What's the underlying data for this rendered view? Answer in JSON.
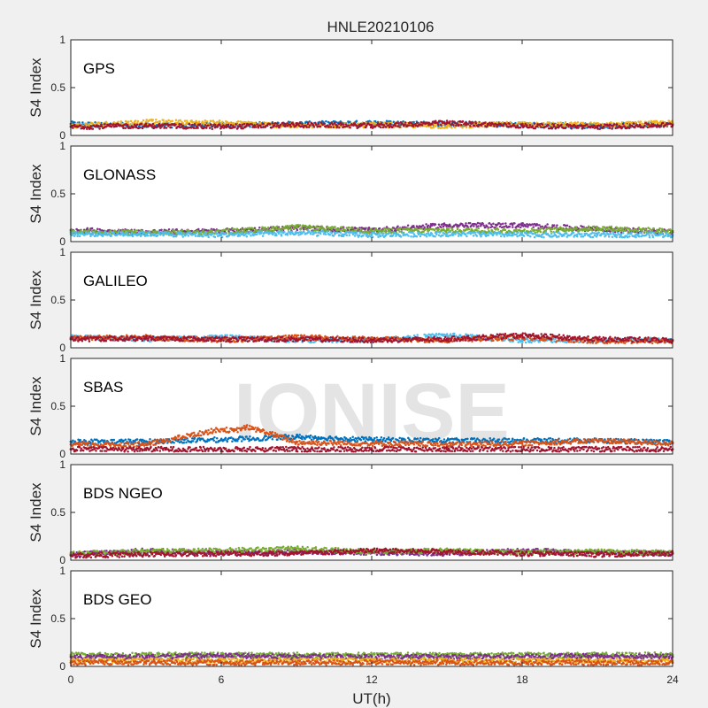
{
  "chart_data": {
    "type": "scatter",
    "title": "HNLE20210106",
    "xlabel": "UT(h)",
    "ylabel": "S4 Index",
    "xlim": [
      0,
      24
    ],
    "ylim": [
      0,
      1
    ],
    "xticks": [
      0,
      6,
      12,
      18,
      24
    ],
    "xtick_labels": [
      "0",
      "6",
      "12",
      "18",
      "24"
    ],
    "yticks": [
      0,
      0.5,
      1
    ],
    "ytick_labels": [
      "0",
      "0.5",
      "1"
    ],
    "grid": false,
    "watermark": "IONISE",
    "series_colors": [
      "#0072bd",
      "#d95319",
      "#edb120",
      "#7e2f8e",
      "#77ac30",
      "#4dbeee",
      "#a2142f"
    ],
    "panels": [
      {
        "label": "GPS",
        "series": [
          {
            "color": "#0072bd",
            "x": [
              0,
              3,
              6,
              9,
              12,
              15,
              18,
              21,
              24
            ],
            "y": [
              0.12,
              0.1,
              0.11,
              0.12,
              0.13,
              0.12,
              0.11,
              0.1,
              0.12
            ]
          },
          {
            "color": "#edb120",
            "x": [
              0,
              3,
              6,
              9,
              12,
              15,
              18,
              21,
              24
            ],
            "y": [
              0.1,
              0.14,
              0.13,
              0.1,
              0.11,
              0.1,
              0.12,
              0.11,
              0.13
            ]
          },
          {
            "color": "#a2142f",
            "x": [
              0,
              3,
              6,
              9,
              12,
              15,
              18,
              21,
              24
            ],
            "y": [
              0.09,
              0.1,
              0.09,
              0.11,
              0.1,
              0.13,
              0.1,
              0.09,
              0.11
            ]
          }
        ]
      },
      {
        "label": "GLONASS",
        "series": [
          {
            "color": "#7e2f8e",
            "x": [
              0,
              3,
              6,
              9,
              12,
              15,
              18,
              21,
              24
            ],
            "y": [
              0.12,
              0.1,
              0.11,
              0.14,
              0.12,
              0.17,
              0.17,
              0.13,
              0.1
            ]
          },
          {
            "color": "#77ac30",
            "x": [
              0,
              3,
              6,
              9,
              12,
              15,
              18,
              21,
              24
            ],
            "y": [
              0.1,
              0.09,
              0.1,
              0.15,
              0.11,
              0.12,
              0.11,
              0.14,
              0.11
            ]
          },
          {
            "color": "#4dbeee",
            "x": [
              0,
              3,
              6,
              9,
              12,
              15,
              18,
              21,
              24
            ],
            "y": [
              0.08,
              0.08,
              0.07,
              0.09,
              0.07,
              0.08,
              0.07,
              0.07,
              0.07
            ]
          }
        ]
      },
      {
        "label": "GALILEO",
        "series": [
          {
            "color": "#4dbeee",
            "x": [
              0,
              3,
              6,
              9,
              12,
              15,
              18,
              21,
              24
            ],
            "y": [
              0.11,
              0.09,
              0.11,
              0.08,
              0.08,
              0.13,
              0.08,
              0.08,
              0.08
            ]
          },
          {
            "color": "#d95319",
            "x": [
              0,
              3,
              6,
              9,
              12,
              15,
              18,
              21,
              24
            ],
            "y": [
              0.1,
              0.11,
              0.08,
              0.11,
              0.09,
              0.08,
              0.11,
              0.07,
              0.07
            ]
          },
          {
            "color": "#a2142f",
            "x": [
              0,
              3,
              6,
              9,
              12,
              15,
              18,
              21,
              24
            ],
            "y": [
              0.09,
              0.1,
              0.09,
              0.09,
              0.08,
              0.09,
              0.13,
              0.09,
              0.08
            ]
          }
        ]
      },
      {
        "label": "SBAS",
        "series": [
          {
            "color": "#0072bd",
            "x": [
              0,
              3,
              6,
              9,
              12,
              15,
              18,
              21,
              24
            ],
            "y": [
              0.13,
              0.13,
              0.15,
              0.18,
              0.15,
              0.14,
              0.14,
              0.14,
              0.12
            ]
          },
          {
            "color": "#d95319",
            "x": [
              0,
              3,
              6,
              6.5,
              7,
              7.5,
              8,
              9,
              12,
              15,
              18,
              21,
              24
            ],
            "y": [
              0.1,
              0.1,
              0.26,
              0.24,
              0.28,
              0.25,
              0.21,
              0.12,
              0.11,
              0.1,
              0.11,
              0.14,
              0.11
            ]
          },
          {
            "color": "#a2142f",
            "x": [
              0,
              3,
              6,
              9,
              12,
              15,
              18,
              21,
              24
            ],
            "y": [
              0.05,
              0.05,
              0.05,
              0.05,
              0.05,
              0.05,
              0.05,
              0.05,
              0.05
            ]
          }
        ]
      },
      {
        "label": "BDS NGEO",
        "series": [
          {
            "color": "#7e2f8e",
            "x": [
              0,
              3,
              6,
              9,
              12,
              15,
              18,
              21,
              24
            ],
            "y": [
              0.06,
              0.1,
              0.08,
              0.09,
              0.08,
              0.07,
              0.1,
              0.08,
              0.07
            ]
          },
          {
            "color": "#77ac30",
            "x": [
              0,
              3,
              6,
              9,
              12,
              15,
              18,
              21,
              24
            ],
            "y": [
              0.07,
              0.09,
              0.1,
              0.12,
              0.09,
              0.1,
              0.08,
              0.09,
              0.08
            ]
          },
          {
            "color": "#a2142f",
            "x": [
              0,
              3,
              6,
              9,
              12,
              15,
              18,
              21,
              24
            ],
            "y": [
              0.05,
              0.06,
              0.07,
              0.07,
              0.1,
              0.09,
              0.07,
              0.06,
              0.07
            ]
          }
        ]
      },
      {
        "label": "BDS GEO",
        "series": [
          {
            "color": "#77ac30",
            "x": [
              0,
              3,
              6,
              9,
              12,
              15,
              18,
              21,
              24
            ],
            "y": [
              0.12,
              0.12,
              0.12,
              0.12,
              0.12,
              0.12,
              0.12,
              0.12,
              0.12
            ]
          },
          {
            "color": "#7e2f8e",
            "x": [
              0,
              3,
              6,
              9,
              12,
              15,
              18,
              21,
              24
            ],
            "y": [
              0.1,
              0.1,
              0.11,
              0.1,
              0.1,
              0.1,
              0.1,
              0.11,
              0.1
            ]
          },
          {
            "color": "#edb120",
            "x": [
              0,
              3,
              6,
              9,
              12,
              15,
              18,
              21,
              24
            ],
            "y": [
              0.06,
              0.06,
              0.06,
              0.06,
              0.06,
              0.06,
              0.06,
              0.06,
              0.06
            ]
          },
          {
            "color": "#d95319",
            "x": [
              0,
              3,
              6,
              9,
              12,
              15,
              18,
              21,
              24
            ],
            "y": [
              0.04,
              0.04,
              0.04,
              0.04,
              0.04,
              0.04,
              0.04,
              0.04,
              0.04
            ]
          }
        ]
      }
    ]
  }
}
